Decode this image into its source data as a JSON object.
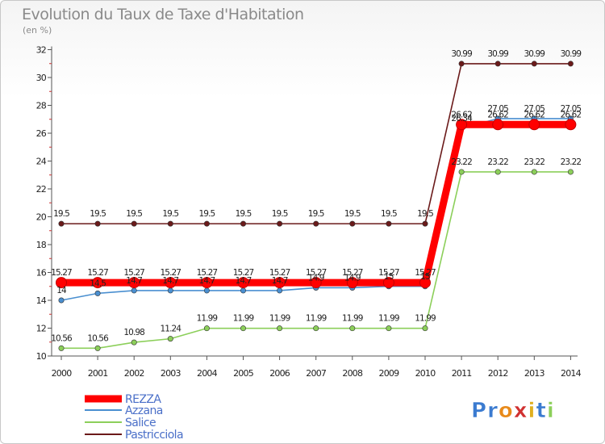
{
  "title": "Evolution du Taux de Taxe d'Habitation",
  "unit": "(en %)",
  "logo": "Proxiti",
  "chart_data": {
    "type": "line",
    "title": "Evolution du Taux de Taxe d'Habitation",
    "ylabel": "(en %)",
    "ylim": [
      10,
      32
    ],
    "yticks": [
      10,
      12,
      14,
      16,
      18,
      20,
      22,
      24,
      26,
      28,
      30,
      32
    ],
    "grid": false,
    "legend_position": "bottom-left",
    "x": [
      "2000",
      "2001",
      "2002",
      "2003",
      "2004",
      "2005",
      "2006",
      "2007",
      "2008",
      "2009",
      "2010",
      "2011",
      "2012",
      "2013",
      "2014"
    ],
    "series": [
      {
        "name": "REZZA",
        "color": "#ff0000",
        "values": [
          15.27,
          15.27,
          15.27,
          15.27,
          15.27,
          15.27,
          15.27,
          15.27,
          15.27,
          15.27,
          15.27,
          26.62,
          26.62,
          26.62,
          26.62
        ],
        "labels": [
          "15.27",
          "15.27",
          "15.27",
          "15.27",
          "15.27",
          "15.27",
          "15.27",
          "15.27",
          "15.27",
          "15.27",
          "15.27",
          "26.62",
          "26.62",
          "26.62",
          "26.62"
        ]
      },
      {
        "name": "Azzana",
        "color": "#4a8fd0",
        "values": [
          14,
          14.5,
          14.7,
          14.7,
          14.7,
          14.7,
          14.7,
          14.9,
          14.9,
          15,
          15,
          26.34,
          27.05,
          27.05,
          27.05
        ],
        "labels": [
          "14",
          "14.5",
          "14.7",
          "14.7",
          "14.7",
          "14.7",
          "14.7",
          "14.9",
          "14.9",
          "15",
          "15",
          "26.34",
          "27.05",
          "27.05",
          "27.05"
        ]
      },
      {
        "name": "Salice",
        "color": "#8ccf5a",
        "values": [
          10.56,
          10.56,
          10.98,
          11.24,
          11.99,
          11.99,
          11.99,
          11.99,
          11.99,
          11.99,
          11.99,
          23.22,
          23.22,
          23.22,
          23.22
        ],
        "labels": [
          "10.56",
          "10.56",
          "10.98",
          "11.24",
          "11.99",
          "11.99",
          "11.99",
          "11.99",
          "11.99",
          "11.99",
          "11.99",
          "23.22",
          "23.22",
          "23.22",
          "23.22"
        ]
      },
      {
        "name": "Pastricciola",
        "color": "#6b1a1a",
        "values": [
          19.5,
          19.5,
          19.5,
          19.5,
          19.5,
          19.5,
          19.5,
          19.5,
          19.5,
          19.5,
          19.5,
          30.99,
          30.99,
          30.99,
          30.99
        ],
        "labels": [
          "19.5",
          "19.5",
          "19.5",
          "19.5",
          "19.5",
          "19.5",
          "19.5",
          "19.5",
          "19.5",
          "19.5",
          "19.5",
          "30.99",
          "30.99",
          "30.99",
          "30.99"
        ]
      }
    ]
  }
}
